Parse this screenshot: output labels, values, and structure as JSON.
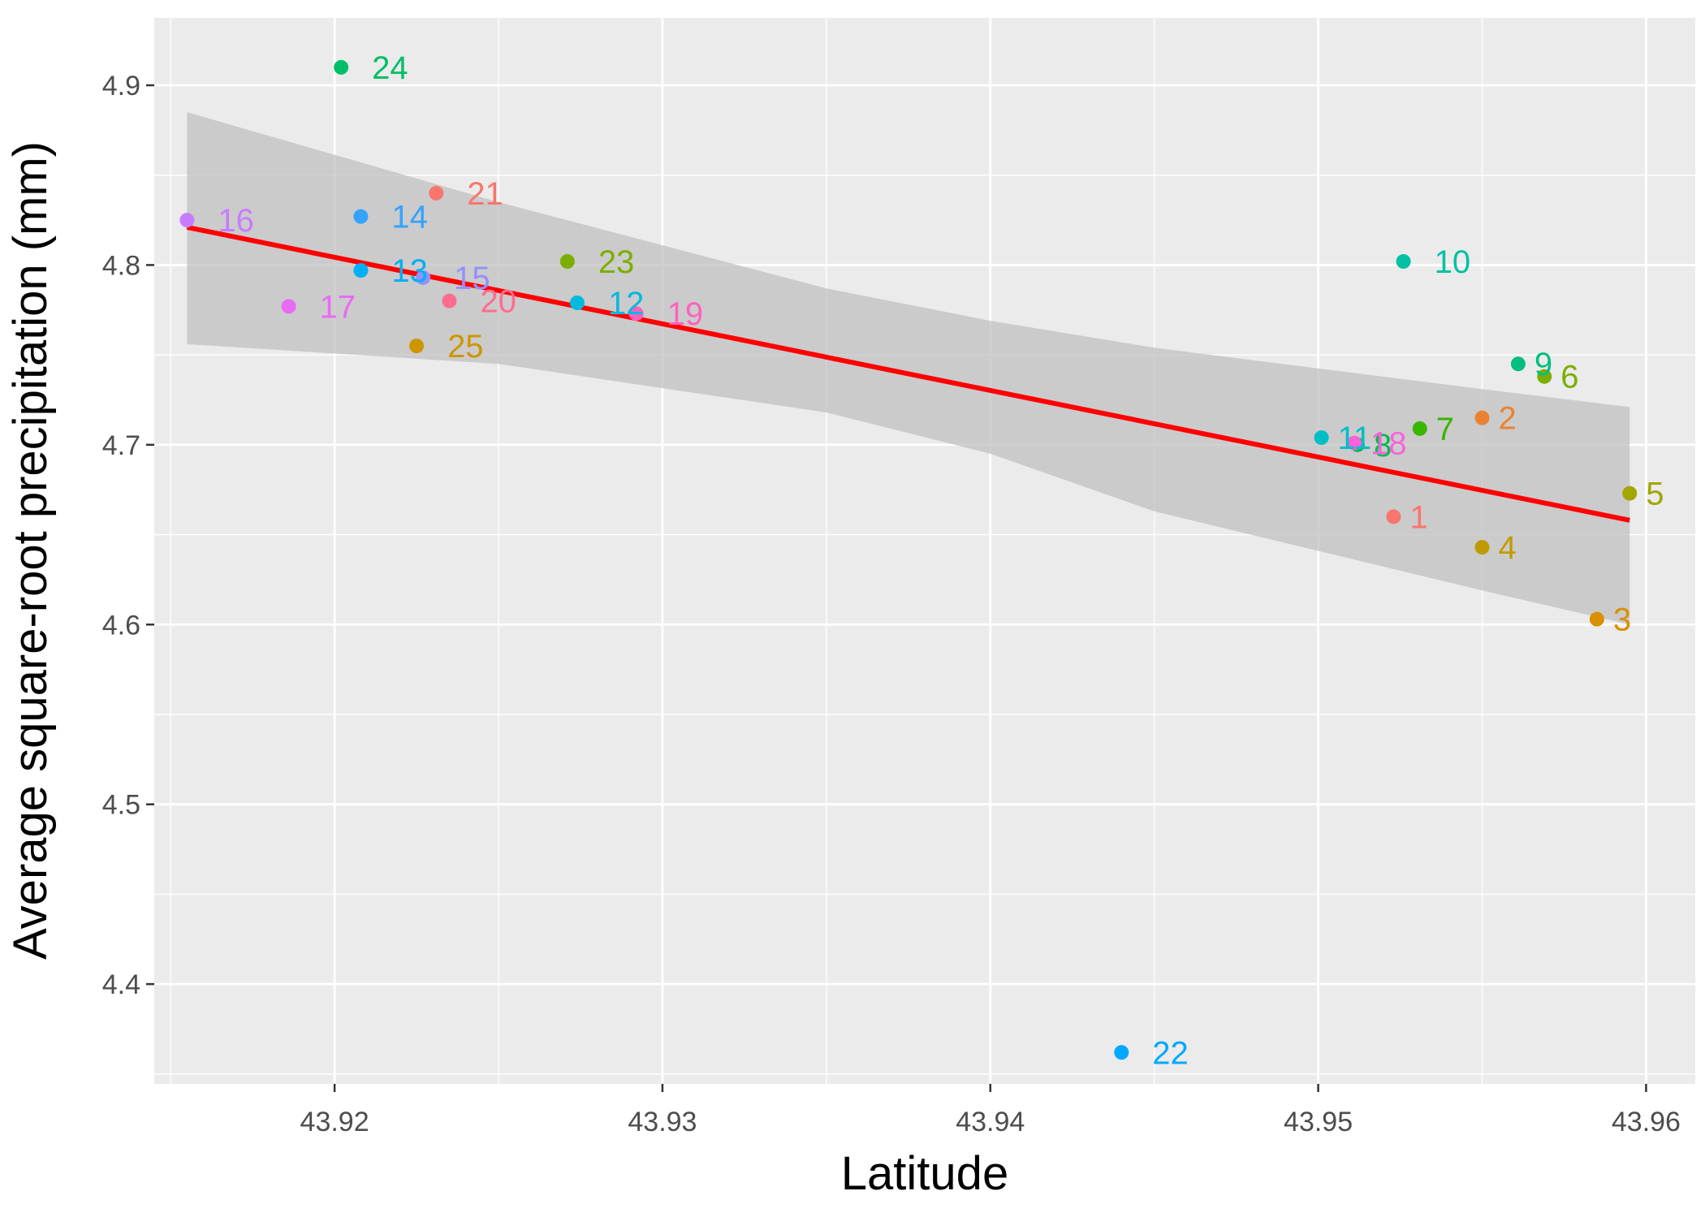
{
  "chart_data": {
    "type": "scatter",
    "xlabel": "Latitude",
    "ylabel": "Average square-root precipitation (mm)",
    "xlim": [
      43.9145,
      43.9615
    ],
    "ylim": [
      4.3445,
      4.9375
    ],
    "x_ticks": [
      43.92,
      43.93,
      43.94,
      43.95,
      43.96
    ],
    "x_tick_labels": [
      "43.92",
      "43.93",
      "43.94",
      "43.95",
      "43.96"
    ],
    "y_ticks": [
      4.4,
      4.5,
      4.6,
      4.7,
      4.8,
      4.9
    ],
    "y_tick_labels": [
      "4.4",
      "4.5",
      "4.6",
      "4.7",
      "4.8",
      "4.9"
    ],
    "grid": true,
    "background": "#EBEBEB",
    "trend_line": {
      "color": "#FF0000",
      "x": [
        43.9155,
        43.9595
      ],
      "y": [
        4.821,
        4.658
      ]
    },
    "confidence_band": {
      "color": "#BEBEBE",
      "x": [
        43.9155,
        43.925,
        43.935,
        43.94,
        43.945,
        43.955,
        43.9595
      ],
      "upper": [
        4.885,
        4.835,
        4.787,
        4.769,
        4.754,
        4.731,
        4.721
      ],
      "lower": [
        4.756,
        4.745,
        4.718,
        4.695,
        4.663,
        4.619,
        4.6
      ]
    },
    "points": [
      {
        "label": "1",
        "x": 43.9523,
        "y": 4.66,
        "color": "#F8766D"
      },
      {
        "label": "2",
        "x": 43.955,
        "y": 4.715,
        "color": "#EA8331"
      },
      {
        "label": "3",
        "x": 43.9585,
        "y": 4.603,
        "color": "#D89000"
      },
      {
        "label": "4",
        "x": 43.955,
        "y": 4.643,
        "color": "#C09B00"
      },
      {
        "label": "5",
        "x": 43.9595,
        "y": 4.673,
        "color": "#A3A500"
      },
      {
        "label": "6",
        "x": 43.9569,
        "y": 4.738,
        "color": "#7CAE00"
      },
      {
        "label": "7",
        "x": 43.9531,
        "y": 4.709,
        "color": "#39B600"
      },
      {
        "label": "8",
        "x": 43.9512,
        "y": 4.7,
        "color": "#00BB4E"
      },
      {
        "label": "9",
        "x": 43.9561,
        "y": 4.745,
        "color": "#00BF7D"
      },
      {
        "label": "10",
        "x": 43.9526,
        "y": 4.802,
        "color": "#00C1A3"
      },
      {
        "label": "11",
        "x": 43.9501,
        "y": 4.704,
        "color": "#00BFC4"
      },
      {
        "label": "12",
        "x": 43.9274,
        "y": 4.779,
        "color": "#00BAE0"
      },
      {
        "label": "13",
        "x": 43.9208,
        "y": 4.797,
        "color": "#00B0F6"
      },
      {
        "label": "14",
        "x": 43.9208,
        "y": 4.827,
        "color": "#35A2FF"
      },
      {
        "label": "15",
        "x": 43.9227,
        "y": 4.793,
        "color": "#9590FF"
      },
      {
        "label": "16",
        "x": 43.9155,
        "y": 4.825,
        "color": "#C77CFF"
      },
      {
        "label": "17",
        "x": 43.9186,
        "y": 4.777,
        "color": "#E76BF3"
      },
      {
        "label": "18",
        "x": 43.9511,
        "y": 4.701,
        "color": "#FA62DB"
      },
      {
        "label": "19",
        "x": 43.9292,
        "y": 4.773,
        "color": "#FF62BC"
      },
      {
        "label": "20",
        "x": 43.9235,
        "y": 4.78,
        "color": "#FF6C91"
      },
      {
        "label": "21",
        "x": 43.9231,
        "y": 4.84,
        "color": "#F8766D"
      },
      {
        "label": "22",
        "x": 43.944,
        "y": 4.362,
        "color": "#00A9FF"
      },
      {
        "label": "23",
        "x": 43.9271,
        "y": 4.802,
        "color": "#7CAE00"
      },
      {
        "label": "24",
        "x": 43.9202,
        "y": 4.91,
        "color": "#00BE67"
      },
      {
        "label": "25",
        "x": 43.9225,
        "y": 4.755,
        "color": "#CD9600"
      }
    ]
  }
}
